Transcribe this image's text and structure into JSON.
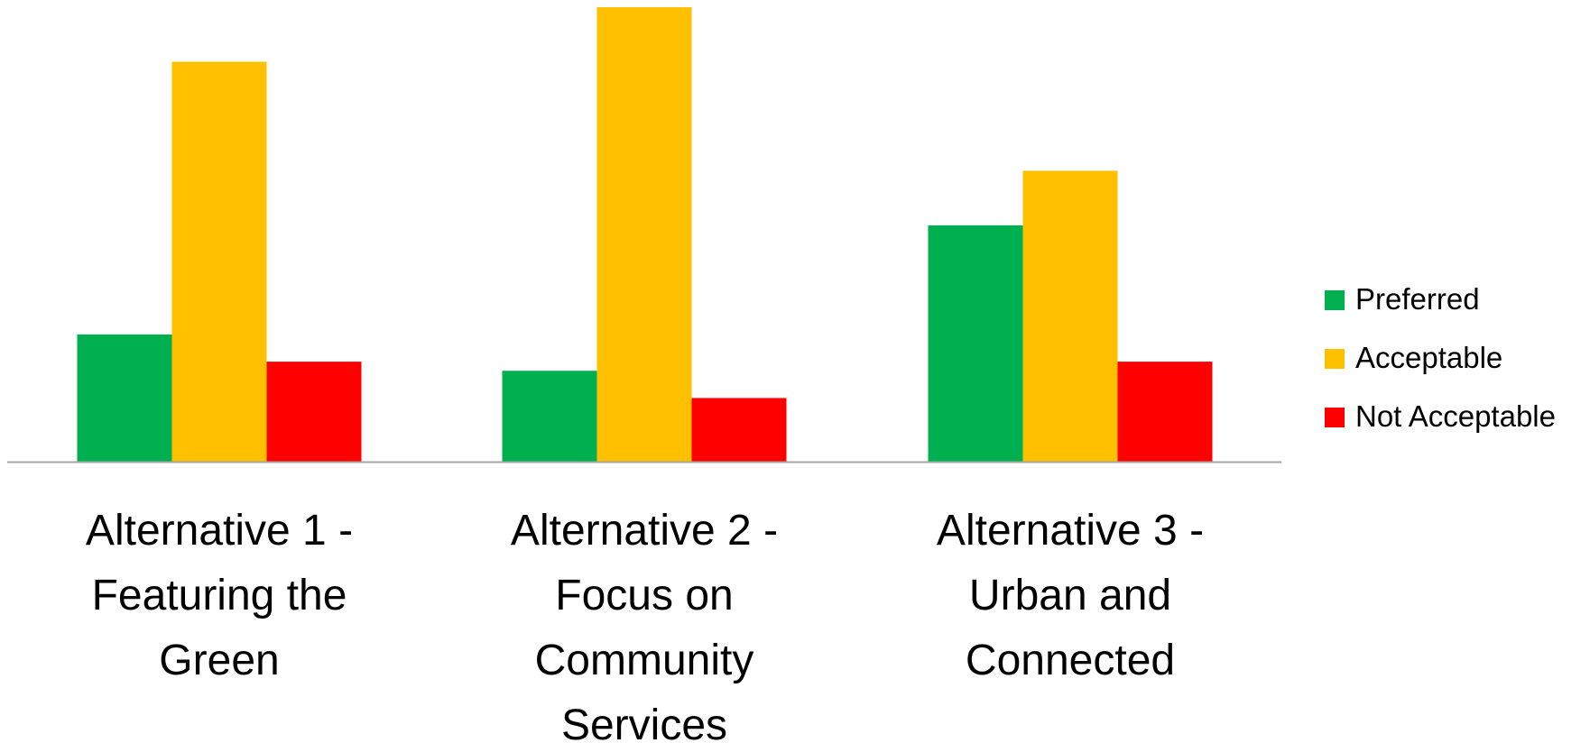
{
  "chart_data": {
    "type": "bar",
    "title": "",
    "xlabel": "",
    "ylabel": "",
    "categories": [
      "Alternative 1 - Featuring the Green",
      "Alternative 2 - Focus on Community Services",
      "Alternative 3 - Urban and Connected"
    ],
    "category_label_lines": [
      [
        "Alternative 1 -",
        "Featuring the",
        "Green"
      ],
      [
        "Alternative 2 -",
        "Focus on",
        "Community",
        "Services"
      ],
      [
        "Alternative 3 -",
        "Urban and",
        "Connected"
      ]
    ],
    "series": [
      {
        "name": "Preferred",
        "color": "#00b050",
        "values": [
          14,
          10,
          26
        ]
      },
      {
        "name": "Acceptable",
        "color": "#ffc000",
        "values": [
          44,
          50,
          32
        ]
      },
      {
        "name": "Not Acceptable",
        "color": "#ff0000",
        "values": [
          11,
          7,
          11
        ]
      }
    ],
    "ylim": [
      0,
      50
    ],
    "y_axis_shown": false,
    "grid": false,
    "legend_position": "right",
    "axis_color": "#a6a6a6"
  }
}
